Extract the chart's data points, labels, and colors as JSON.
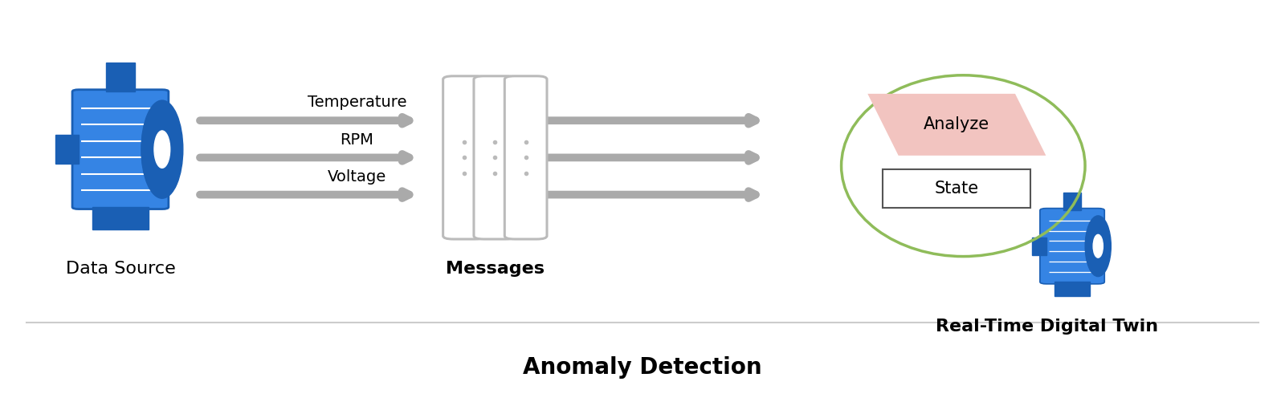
{
  "background_color": "#ffffff",
  "title": "Anomaly Detection",
  "title_fontsize": 20,
  "title_fontweight": "bold",
  "arrow_color": "#aaaaaa",
  "motor_blue_dark": "#1a5fb4",
  "motor_blue_light": "#3584e4",
  "motor_blue_mid": "#1c71d8",
  "msg_color": "#bbbbbb",
  "msg_fill": "#ffffff",
  "ellipse_color": "#8fbc5a",
  "analyze_fill": "#f2c4c0",
  "state_fill": "#ffffff",
  "state_border": "#555555",
  "label_fontsize": 16,
  "param_fontsize": 14,
  "params": [
    "Temperature",
    "RPM",
    "Voltage"
  ],
  "separator_color": "#cccccc",
  "ds_label": "Data Source",
  "msg_label": "Messages",
  "twin_label": "Real-Time Digital Twin",
  "analyze_label": "Analyze",
  "state_label": "State"
}
